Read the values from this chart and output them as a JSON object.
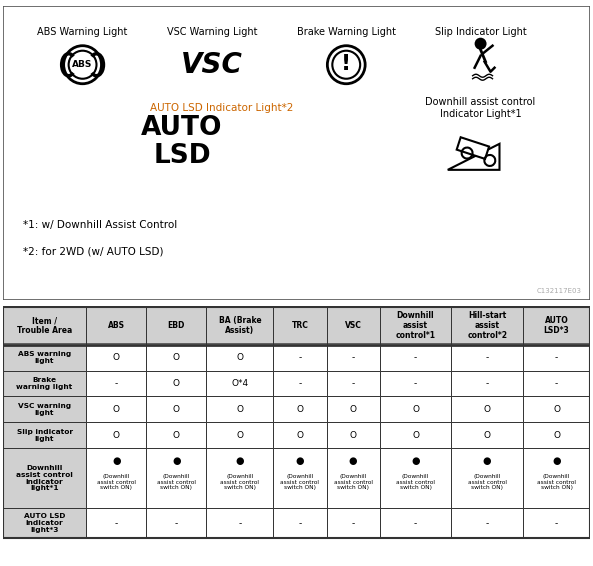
{
  "warning_labels": [
    "ABS Warning Light",
    "VSC Warning Light",
    "Brake Warning Light",
    "Slip Indicator Light"
  ],
  "auto_lsd_label": "AUTO LSD Indicator Light*2",
  "auto_lsd_text": "AUTO\nLSD",
  "downhill_label": "Downhill assist control\nIndicator Light*1",
  "notes": [
    "*1: w/ Downhill Assist Control",
    "*2: for 2WD (w/ AUTO LSD)"
  ],
  "watermark": "C132117E03",
  "col_headers": [
    "Item /\nTrouble Area",
    "ABS",
    "EBD",
    "BA (Brake\nAssist)",
    "TRC",
    "VSC",
    "Downhill\nassist\ncontrol*1",
    "Hill-start\nassist\ncontrol*2",
    "AUTO\nLSD*3"
  ],
  "rows": [
    {
      "label": "ABS warning\nlight",
      "values": [
        "O",
        "O",
        "O",
        "-",
        "-",
        "-",
        "-",
        "-"
      ]
    },
    {
      "label": "Brake\nwarning light",
      "values": [
        "-",
        "O",
        "O*4",
        "-",
        "-",
        "-",
        "-",
        "-"
      ]
    },
    {
      "label": "VSC warning\nlight",
      "values": [
        "O",
        "O",
        "O",
        "O",
        "O",
        "O",
        "O",
        "O"
      ]
    },
    {
      "label": "Slip indicator\nlight",
      "values": [
        "O",
        "O",
        "O",
        "O",
        "O",
        "O",
        "O",
        "O"
      ]
    },
    {
      "label": "Downhill\nassist control\nindicator\nlight*1",
      "values": [
        "●|(Downhill|assist control|switch ON)",
        "●|(Downhill|assist control|switch ON)",
        "●|(Downhill|assist control|switch ON)",
        "●|(Downhill|assist control|switch ON)",
        "●|(Downhill|assist control|switch ON)",
        "●|(Downhill|assist control|switch ON)",
        "●|(Downhill|assist control|switch ON)",
        "●|(Downhill|assist control|switch ON)"
      ]
    },
    {
      "label": "AUTO LSD\nindicator\nlight*3",
      "values": [
        "-",
        "-",
        "-",
        "-",
        "-",
        "-",
        "-",
        "-"
      ]
    }
  ],
  "header_bg": "#d0d0d0",
  "label_bg": "#d0d0d0",
  "cell_bg": "#ffffff",
  "border": "#333333",
  "top_bg": "#ffffff",
  "fig_bg": "#ffffff"
}
